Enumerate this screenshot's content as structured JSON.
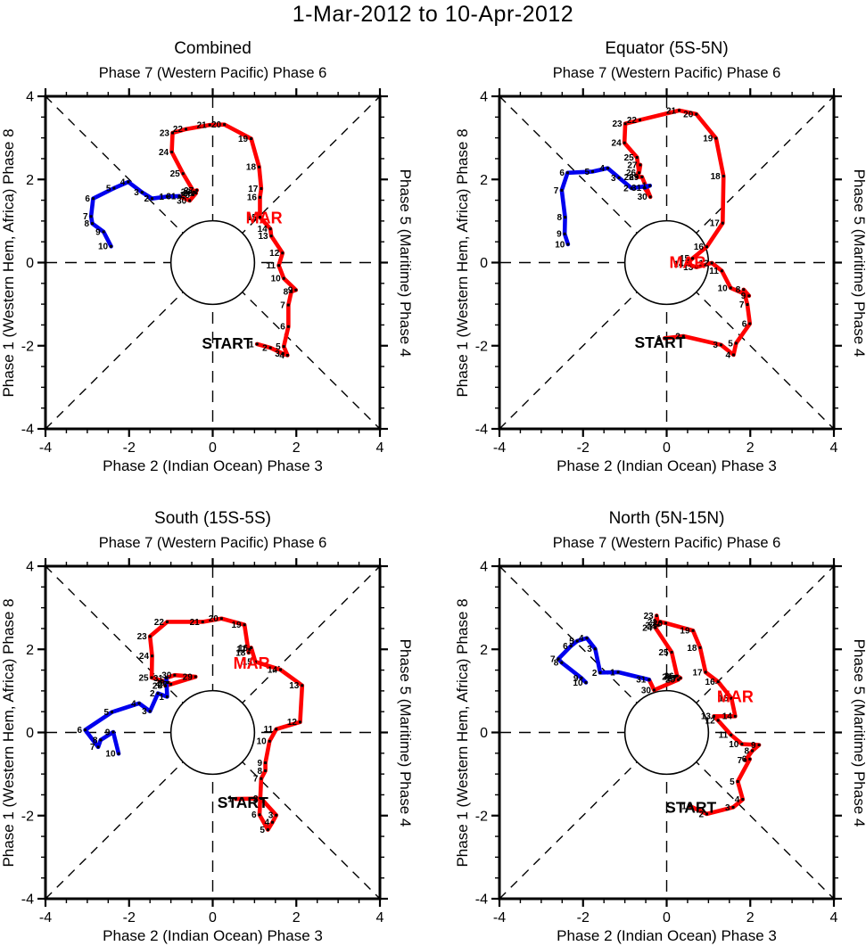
{
  "title": "1-Mar-2012 to 10-Apr-2012",
  "labels": {
    "mar": "MAR",
    "start": "START"
  },
  "colors": {
    "march": "#ff0000",
    "april": "#0000ee",
    "axis": "#000000"
  },
  "axis": {
    "top_label": "Phase 7 (Western Pacific) Phase 6",
    "x_label": "Phase 2 (Indian Ocean) Phase 3",
    "left_label": "Phase 1 (Western Hem, Africa) Phase 8",
    "right_label": "Phase 5 (Maritime) Phase 4",
    "major_ticks": [
      -4,
      -2,
      0,
      2,
      4
    ],
    "minor_step": 0.5,
    "xlim": [
      -4,
      4
    ],
    "ylim": [
      -4,
      4
    ],
    "unit_circle_radius": 1
  },
  "chart_data": [
    {
      "type": "line",
      "title": "Combined",
      "xlim": [
        -4,
        4
      ],
      "ylim": [
        -4,
        4
      ],
      "mar_label_pos": {
        "x": 1.23,
        "y": 1.07
      },
      "start_label_pos": {
        "x": 0.35,
        "y": -1.94
      },
      "series": [
        {
          "name": "march",
          "points": [
            [
              1,
              1.06,
              -1.96
            ],
            [
              2,
              1.38,
              -2.05
            ],
            [
              3,
              1.68,
              -2.19
            ],
            [
              4,
              1.79,
              -2.23
            ],
            [
              5,
              1.7,
              -2.02
            ],
            [
              6,
              1.81,
              -1.54
            ],
            [
              7,
              1.81,
              -1.02
            ],
            [
              8,
              1.88,
              -0.7
            ],
            [
              9,
              1.99,
              -0.66
            ],
            [
              10,
              1.7,
              -0.38
            ],
            [
              11,
              1.58,
              -0.07
            ],
            [
              12,
              1.67,
              0.23
            ],
            [
              13,
              1.4,
              0.64
            ],
            [
              14,
              1.38,
              0.81
            ],
            [
              15,
              1.13,
              1.09
            ],
            [
              16,
              1.13,
              1.57
            ],
            [
              17,
              1.16,
              1.78
            ],
            [
              18,
              1.11,
              2.3
            ],
            [
              19,
              0.92,
              2.98
            ],
            [
              20,
              0.28,
              3.32
            ],
            [
              21,
              -0.07,
              3.31
            ],
            [
              22,
              -0.64,
              3.21
            ],
            [
              23,
              -0.96,
              3.12
            ],
            [
              24,
              -0.98,
              2.66
            ],
            [
              25,
              -0.71,
              2.14
            ],
            [
              26,
              -0.45,
              1.7
            ],
            [
              27,
              -0.38,
              1.74
            ],
            [
              28,
              -0.47,
              1.63
            ],
            [
              29,
              -0.4,
              1.67
            ],
            [
              30,
              -0.55,
              1.49
            ],
            [
              31,
              -0.8,
              1.6
            ]
          ]
        },
        {
          "name": "april",
          "points": [
            [
              1,
              -1.09,
              1.59
            ],
            [
              2,
              -1.45,
              1.54
            ],
            [
              3,
              -1.69,
              1.69
            ],
            [
              4,
              -2.02,
              1.94
            ],
            [
              5,
              -2.36,
              1.79
            ],
            [
              6,
              -2.86,
              1.54
            ],
            [
              7,
              -2.91,
              1.11
            ],
            [
              8,
              -2.88,
              0.94
            ],
            [
              9,
              -2.61,
              0.74
            ],
            [
              10,
              -2.43,
              0.39
            ]
          ]
        }
      ]
    },
    {
      "type": "line",
      "title": "Equator (5S-5N)",
      "xlim": [
        -4,
        4
      ],
      "ylim": [
        -4,
        4
      ],
      "mar_label_pos": {
        "x": 0.5,
        "y": 0.0
      },
      "start_label_pos": {
        "x": -0.16,
        "y": -1.92
      },
      "series": [
        {
          "name": "march",
          "points": [
            [
              1,
              -0.05,
              -1.82
            ],
            [
              2,
              0.4,
              -1.77
            ],
            [
              3,
              1.3,
              -1.98
            ],
            [
              4,
              1.6,
              -2.22
            ],
            [
              5,
              1.66,
              -1.94
            ],
            [
              6,
              1.99,
              -1.47
            ],
            [
              7,
              1.93,
              -1.01
            ],
            [
              8,
              1.84,
              -0.65
            ],
            [
              9,
              1.97,
              -0.8
            ],
            [
              10,
              1.53,
              -0.61
            ],
            [
              11,
              1.32,
              -0.2
            ],
            [
              12,
              1.08,
              -0.01
            ],
            [
              13,
              0.71,
              -0.11
            ],
            [
              14,
              0.48,
              -0.03
            ],
            [
              15,
              0.62,
              0.1
            ],
            [
              16,
              0.96,
              0.38
            ],
            [
              17,
              1.34,
              0.95
            ],
            [
              18,
              1.36,
              2.08
            ],
            [
              19,
              1.18,
              2.99
            ],
            [
              20,
              0.71,
              3.57
            ],
            [
              21,
              0.3,
              3.66
            ],
            [
              22,
              -0.64,
              3.43
            ],
            [
              23,
              -0.99,
              3.34
            ],
            [
              24,
              -1.01,
              2.88
            ],
            [
              25,
              -0.71,
              2.53
            ],
            [
              26,
              -0.66,
              2.16
            ],
            [
              27,
              -0.63,
              2.35
            ],
            [
              28,
              -0.71,
              2.06
            ],
            [
              29,
              -0.59,
              2.06
            ],
            [
              30,
              -0.39,
              1.58
            ],
            [
              31,
              -0.53,
              1.8
            ]
          ]
        },
        {
          "name": "april",
          "points": [
            [
              1,
              -0.4,
              1.85
            ],
            [
              2,
              -0.84,
              1.79
            ],
            [
              3,
              -1.14,
              2.04
            ],
            [
              4,
              -1.41,
              2.27
            ],
            [
              5,
              -1.77,
              2.19
            ],
            [
              6,
              -2.37,
              2.16
            ],
            [
              7,
              -2.51,
              1.74
            ],
            [
              8,
              -2.43,
              1.09
            ],
            [
              9,
              -2.44,
              0.69
            ],
            [
              10,
              -2.36,
              0.44
            ]
          ]
        }
      ]
    },
    {
      "type": "line",
      "title": "South (15S-5S)",
      "xlim": [
        -4,
        4
      ],
      "ylim": [
        -4,
        4
      ],
      "mar_label_pos": {
        "x": 0.93,
        "y": 1.66
      },
      "start_label_pos": {
        "x": 0.72,
        "y": -1.68
      },
      "series": [
        {
          "name": "march",
          "points": [
            [
              1,
              0.55,
              -1.6
            ],
            [
              2,
              1.16,
              -1.59
            ],
            [
              3,
              1.52,
              -1.99
            ],
            [
              4,
              1.43,
              -2.16
            ],
            [
              5,
              1.32,
              -2.34
            ],
            [
              6,
              1.12,
              -1.98
            ],
            [
              7,
              1.16,
              -1.11
            ],
            [
              8,
              1.26,
              -0.92
            ],
            [
              9,
              1.26,
              -0.73
            ],
            [
              10,
              1.36,
              -0.21
            ],
            [
              11,
              1.52,
              0.08
            ],
            [
              12,
              2.09,
              0.25
            ],
            [
              13,
              2.14,
              1.13
            ],
            [
              14,
              1.62,
              1.51
            ],
            [
              15,
              1.02,
              1.7
            ],
            [
              16,
              0.92,
              2.04
            ],
            [
              17,
              0.88,
              2.0
            ],
            [
              18,
              0.86,
              1.92
            ],
            [
              19,
              0.76,
              2.59
            ],
            [
              20,
              0.21,
              2.74
            ],
            [
              21,
              -0.24,
              2.66
            ],
            [
              22,
              -1.09,
              2.66
            ],
            [
              23,
              -1.5,
              2.31
            ],
            [
              24,
              -1.45,
              1.84
            ],
            [
              25,
              -1.46,
              1.32
            ],
            [
              26,
              -1.07,
              1.2
            ],
            [
              27,
              -1.0,
              1.16
            ],
            [
              28,
              -1.13,
              1.12
            ],
            [
              29,
              -0.41,
              1.34
            ],
            [
              30,
              -0.91,
              1.38
            ],
            [
              31,
              -1.11,
              1.31
            ]
          ]
        },
        {
          "name": "april",
          "points": [
            [
              1,
              -1.09,
              0.86
            ],
            [
              2,
              -1.31,
              0.94
            ],
            [
              3,
              -1.5,
              0.51
            ],
            [
              4,
              -1.76,
              0.7
            ],
            [
              5,
              -2.41,
              0.49
            ],
            [
              6,
              -3.05,
              0.06
            ],
            [
              7,
              -2.74,
              -0.35
            ],
            [
              8,
              -2.68,
              -0.18
            ],
            [
              9,
              -2.38,
              0.01
            ],
            [
              10,
              -2.25,
              -0.51
            ]
          ]
        }
      ]
    },
    {
      "type": "line",
      "title": "North (5N-15N)",
      "xlim": [
        -4,
        4
      ],
      "ylim": [
        -4,
        4
      ],
      "mar_label_pos": {
        "x": 1.64,
        "y": 0.86
      },
      "start_label_pos": {
        "x": 0.58,
        "y": -1.8
      },
      "series": [
        {
          "name": "march",
          "points": [
            [
              1,
              0.55,
              -1.77
            ],
            [
              2,
              0.96,
              -1.96
            ],
            [
              3,
              1.59,
              -1.8
            ],
            [
              4,
              1.82,
              -1.61
            ],
            [
              5,
              1.7,
              -1.18
            ],
            [
              6,
              1.99,
              -0.64
            ],
            [
              7,
              1.88,
              -0.67
            ],
            [
              8,
              2.05,
              -0.44
            ],
            [
              9,
              2.21,
              -0.3
            ],
            [
              10,
              1.8,
              -0.28
            ],
            [
              11,
              1.54,
              -0.06
            ],
            [
              12,
              1.23,
              0.29
            ],
            [
              13,
              1.13,
              0.39
            ],
            [
              14,
              1.64,
              0.39
            ],
            [
              15,
              1.55,
              0.82
            ],
            [
              16,
              1.23,
              1.22
            ],
            [
              17,
              0.93,
              1.45
            ],
            [
              18,
              0.8,
              2.04
            ],
            [
              19,
              0.63,
              2.45
            ],
            [
              20,
              -0.02,
              2.63
            ],
            [
              21,
              -0.15,
              2.66
            ],
            [
              22,
              -0.2,
              2.58
            ],
            [
              23,
              -0.24,
              2.81
            ],
            [
              24,
              -0.27,
              2.52
            ],
            [
              25,
              0.12,
              1.93
            ],
            [
              26,
              0.25,
              1.36
            ],
            [
              27,
              0.33,
              1.31
            ],
            [
              28,
              0.2,
              1.34
            ],
            [
              29,
              0.28,
              1.27
            ],
            [
              30,
              -0.3,
              1.02
            ],
            [
              31,
              -0.42,
              1.27
            ]
          ]
        },
        {
          "name": "april",
          "points": [
            [
              1,
              -1.16,
              1.45
            ],
            [
              2,
              -1.59,
              1.44
            ],
            [
              3,
              -1.71,
              2.01
            ],
            [
              4,
              -1.91,
              2.27
            ],
            [
              5,
              -2.14,
              2.2
            ],
            [
              6,
              -2.29,
              2.08
            ],
            [
              7,
              -2.59,
              1.77
            ],
            [
              8,
              -2.51,
              1.68
            ],
            [
              9,
              -2.04,
              1.31
            ],
            [
              10,
              -1.93,
              1.2
            ]
          ]
        }
      ]
    }
  ]
}
